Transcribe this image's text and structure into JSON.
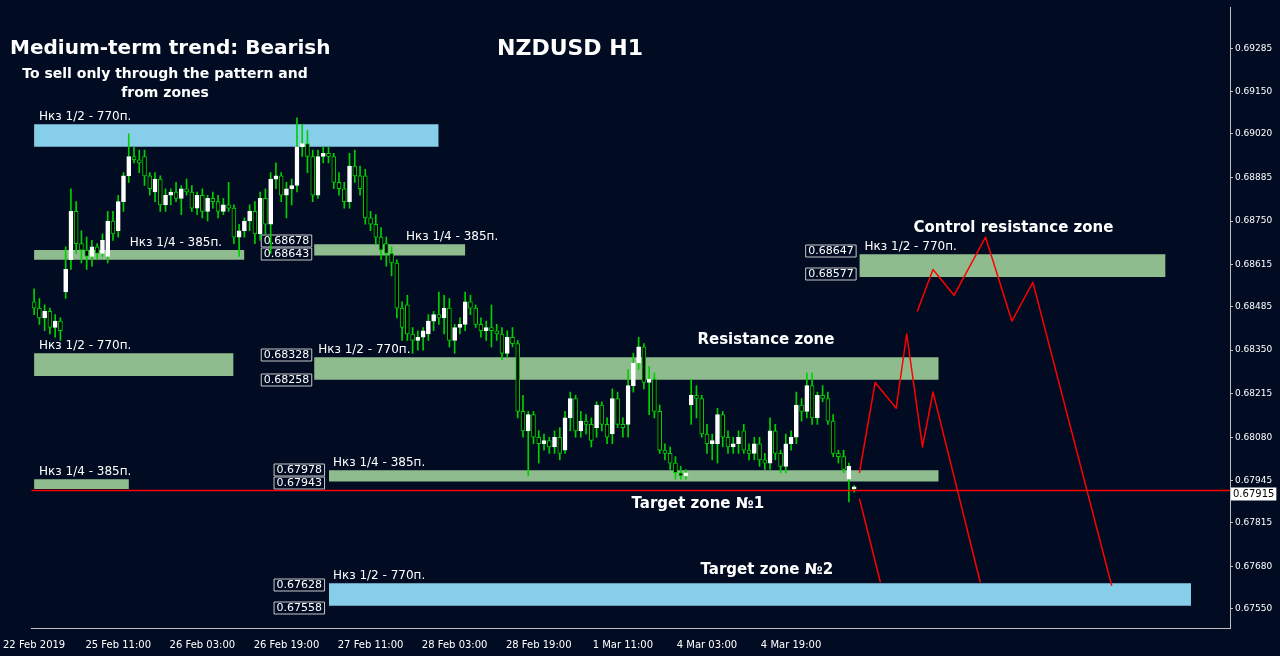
{
  "chart_data": {
    "type": "candlestick",
    "title": "NZDUSD H1",
    "subtitle": "Medium-term trend: Bearish",
    "categories": [
      "22 Feb 2019",
      null,
      null,
      null,
      null,
      null,
      null,
      null,
      null,
      null,
      null,
      null,
      null,
      null,
      null,
      null,
      "25 Feb 11:00",
      null,
      null,
      null,
      null,
      null,
      null,
      null,
      null,
      null,
      null,
      null,
      null,
      null,
      null,
      null,
      "26 Feb 03:00",
      null,
      null,
      null,
      null,
      null,
      null,
      null,
      null,
      null,
      null,
      null,
      null,
      null,
      null,
      null,
      "26 Feb 19:00",
      null,
      null,
      null,
      null,
      null,
      null,
      null,
      null,
      null,
      null,
      null,
      null,
      null,
      null,
      null,
      "27 Feb 11:00",
      null,
      null,
      null,
      null,
      null,
      null,
      null,
      null,
      null,
      null,
      null,
      null,
      null,
      null,
      null,
      "28 Feb 03:00",
      null,
      null,
      null,
      null,
      null,
      null,
      null,
      null,
      null,
      null,
      null,
      null,
      null,
      null,
      null,
      "28 Feb 19:00",
      null,
      null,
      null,
      null,
      null,
      null,
      null,
      null,
      null,
      null,
      null,
      null,
      null,
      null,
      null,
      "1 Mar 11:00",
      null,
      null,
      null,
      null,
      null,
      null,
      null,
      null,
      null,
      null,
      null,
      null,
      null,
      null,
      null,
      "4 Mar 03:00",
      null,
      null,
      null,
      null,
      null,
      null,
      null,
      null,
      null,
      null,
      null,
      null,
      null,
      null,
      null,
      "4 Mar 19:00",
      null,
      null,
      null,
      null,
      null,
      null,
      null,
      null,
      null,
      null,
      null,
      null,
      null,
      null,
      null,
      null,
      null,
      null,
      null,
      null,
      null,
      null,
      null,
      null,
      null,
      null,
      null,
      null,
      null,
      null,
      null,
      null,
      null,
      null,
      null,
      null,
      null,
      null,
      null,
      null,
      null,
      null,
      null,
      null,
      null,
      null,
      null,
      null,
      null,
      null,
      null,
      null,
      null,
      null,
      null,
      null,
      null,
      null,
      null,
      null,
      null,
      null,
      null,
      null,
      null,
      null,
      null,
      null,
      null,
      null,
      null,
      null,
      null,
      null,
      null,
      null,
      null,
      null,
      null,
      null,
      null,
      null,
      null
    ],
    "ohlc": [
      [
        0.685,
        0.6854,
        0.6846,
        0.6848
      ],
      [
        0.6848,
        0.6851,
        0.6843,
        0.6845
      ],
      [
        0.6845,
        0.6849,
        0.6841,
        0.6847
      ],
      [
        0.6847,
        0.6848,
        0.684,
        0.6842
      ],
      [
        0.6842,
        0.6846,
        0.6839,
        0.6844
      ],
      [
        0.6844,
        0.6845,
        0.6838,
        0.6841
      ],
      [
        0.6853,
        0.6867,
        0.6851,
        0.686
      ],
      [
        0.6863,
        0.6885,
        0.686,
        0.6878
      ],
      [
        0.6878,
        0.6881,
        0.6865,
        0.6868
      ],
      [
        0.6868,
        0.6872,
        0.6862,
        0.6866
      ],
      [
        0.6866,
        0.687,
        0.686,
        0.6864
      ],
      [
        0.6864,
        0.6869,
        0.6861,
        0.6867
      ],
      [
        0.6867,
        0.6868,
        0.6863,
        0.6865
      ],
      [
        0.6865,
        0.6871,
        0.6864,
        0.6869
      ],
      [
        0.6864,
        0.6878,
        0.6862,
        0.6875
      ],
      [
        0.6875,
        0.6878,
        0.6869,
        0.6871
      ],
      [
        0.6872,
        0.6883,
        0.687,
        0.6881
      ],
      [
        0.6881,
        0.689,
        0.6878,
        0.6889
      ],
      [
        0.6889,
        0.6902,
        0.6887,
        0.6895
      ],
      [
        0.6895,
        0.6898,
        0.6893,
        0.6894
      ],
      [
        0.6894,
        0.6897,
        0.689,
        0.6893
      ],
      [
        0.6895,
        0.6897,
        0.6886,
        0.6889
      ],
      [
        0.6889,
        0.689,
        0.6883,
        0.6885
      ],
      [
        0.6884,
        0.689,
        0.6881,
        0.6888
      ],
      [
        0.6888,
        0.6889,
        0.6878,
        0.688
      ],
      [
        0.688,
        0.6885,
        0.6878,
        0.6883
      ],
      [
        0.6883,
        0.6885,
        0.688,
        0.6884
      ],
      [
        0.6884,
        0.6887,
        0.6881,
        0.6882
      ],
      [
        0.6882,
        0.6886,
        0.6877,
        0.6885
      ],
      [
        0.6885,
        0.6888,
        0.6883,
        0.6884
      ],
      [
        0.6884,
        0.6886,
        0.6878,
        0.6879
      ],
      [
        0.6879,
        0.6884,
        0.6877,
        0.6883
      ],
      [
        0.6883,
        0.6885,
        0.6876,
        0.6878
      ],
      [
        0.6878,
        0.6883,
        0.6875,
        0.6882
      ],
      [
        0.6882,
        0.6884,
        0.6879,
        0.6881
      ],
      [
        0.6881,
        0.6883,
        0.6876,
        0.6878
      ],
      [
        0.6878,
        0.6882,
        0.6877,
        0.688
      ],
      [
        0.688,
        0.6887,
        0.6878,
        0.6879
      ],
      [
        0.6879,
        0.688,
        0.6868,
        0.687
      ],
      [
        0.687,
        0.6874,
        0.6864,
        0.6872
      ],
      [
        0.6872,
        0.6876,
        0.687,
        0.6875
      ],
      [
        0.6875,
        0.688,
        0.6872,
        0.6878
      ],
      [
        0.6878,
        0.6881,
        0.6868,
        0.6871
      ],
      [
        0.6871,
        0.6884,
        0.6869,
        0.6882
      ],
      [
        0.6882,
        0.6885,
        0.6871,
        0.6874
      ],
      [
        0.6874,
        0.689,
        0.6865,
        0.6888
      ],
      [
        0.6888,
        0.6893,
        0.6885,
        0.6889
      ],
      [
        0.6889,
        0.689,
        0.6881,
        0.6883
      ],
      [
        0.6883,
        0.6887,
        0.6876,
        0.6885
      ],
      [
        0.6885,
        0.6888,
        0.688,
        0.6886
      ],
      [
        0.6886,
        0.6907,
        0.6884,
        0.6898
      ],
      [
        0.6898,
        0.6905,
        0.6895,
        0.6899
      ],
      [
        0.6899,
        0.6903,
        0.689,
        0.6895
      ],
      [
        0.6895,
        0.6897,
        0.6881,
        0.6883
      ],
      [
        0.6883,
        0.6897,
        0.6882,
        0.6895
      ],
      [
        0.6895,
        0.6898,
        0.6893,
        0.6896
      ],
      [
        0.6896,
        0.6898,
        0.6893,
        0.6895
      ],
      [
        0.6895,
        0.6896,
        0.6885,
        0.6887
      ],
      [
        0.6887,
        0.689,
        0.6883,
        0.6885
      ],
      [
        0.6885,
        0.6887,
        0.6879,
        0.6881
      ],
      [
        0.6881,
        0.6896,
        0.6879,
        0.6892
      ],
      [
        0.6892,
        0.6897,
        0.6887,
        0.6889
      ],
      [
        0.6889,
        0.6892,
        0.6883,
        0.6885
      ],
      [
        0.6889,
        0.6891,
        0.6874,
        0.6876
      ],
      [
        0.6876,
        0.6878,
        0.6872,
        0.6874
      ],
      [
        0.6874,
        0.6877,
        0.6868,
        0.687
      ],
      [
        0.687,
        0.6873,
        0.6863,
        0.6866
      ],
      [
        0.6868,
        0.687,
        0.6861,
        0.6865
      ],
      [
        0.6865,
        0.6867,
        0.6858,
        0.6862
      ],
      [
        0.6862,
        0.6863,
        0.6845,
        0.6848
      ],
      [
        0.6848,
        0.685,
        0.6838,
        0.6842
      ],
      [
        0.6849,
        0.6852,
        0.6838,
        0.684
      ],
      [
        0.684,
        0.6842,
        0.6834,
        0.6838
      ],
      [
        0.6838,
        0.6841,
        0.6835,
        0.6839
      ],
      [
        0.6839,
        0.6842,
        0.6835,
        0.6841
      ],
      [
        0.684,
        0.6846,
        0.6838,
        0.6844
      ],
      [
        0.6844,
        0.6847,
        0.6841,
        0.6846
      ],
      [
        0.6846,
        0.6853,
        0.6843,
        0.6845
      ],
      [
        0.6845,
        0.6852,
        0.684,
        0.6848
      ],
      [
        0.6848,
        0.6851,
        0.6836,
        0.6838
      ],
      [
        0.6838,
        0.6843,
        0.6834,
        0.6842
      ],
      [
        0.6842,
        0.6845,
        0.684,
        0.6843
      ],
      [
        0.6843,
        0.6853,
        0.6841,
        0.685
      ],
      [
        0.685,
        0.6852,
        0.6846,
        0.6848
      ],
      [
        0.6848,
        0.6849,
        0.6842,
        0.6843
      ],
      [
        0.6843,
        0.6845,
        0.6839,
        0.6841
      ],
      [
        0.6841,
        0.6844,
        0.6838,
        0.6842
      ],
      [
        0.6842,
        0.6849,
        0.6836,
        0.6841
      ],
      [
        0.6841,
        0.6843,
        0.6838,
        0.684
      ],
      [
        0.684,
        0.6842,
        0.6832,
        0.6834
      ],
      [
        0.6834,
        0.6841,
        0.6833,
        0.6839
      ],
      [
        0.6839,
        0.6842,
        0.6836,
        0.6837
      ],
      [
        0.6837,
        0.6838,
        0.6814,
        0.6816
      ],
      [
        0.6816,
        0.6821,
        0.6808,
        0.681
      ],
      [
        0.681,
        0.6816,
        0.6796,
        0.6815
      ],
      [
        0.6815,
        0.6816,
        0.6806,
        0.6808
      ],
      [
        0.6808,
        0.681,
        0.68,
        0.6806
      ],
      [
        0.6806,
        0.6809,
        0.6804,
        0.6807
      ],
      [
        0.6807,
        0.6808,
        0.6803,
        0.6805
      ],
      [
        0.6805,
        0.681,
        0.6803,
        0.6808
      ],
      [
        0.6808,
        0.6811,
        0.6801,
        0.6803
      ],
      [
        0.6804,
        0.6816,
        0.6803,
        0.6814
      ],
      [
        0.6814,
        0.6822,
        0.681,
        0.682
      ],
      [
        0.682,
        0.6821,
        0.6808,
        0.681
      ],
      [
        0.681,
        0.6816,
        0.6808,
        0.6813
      ],
      [
        0.6813,
        0.6815,
        0.6809,
        0.6812
      ],
      [
        0.6812,
        0.6814,
        0.6805,
        0.6807
      ],
      [
        0.6811,
        0.6819,
        0.6808,
        0.6818
      ],
      [
        0.6818,
        0.6819,
        0.681,
        0.6812
      ],
      [
        0.6812,
        0.6814,
        0.6806,
        0.6808
      ],
      [
        0.6809,
        0.6823,
        0.6806,
        0.682
      ],
      [
        0.682,
        0.6822,
        0.6811,
        0.6812
      ],
      [
        0.6812,
        0.6814,
        0.6808,
        0.6811
      ],
      [
        0.6812,
        0.6829,
        0.6808,
        0.6824
      ],
      [
        0.6824,
        0.6834,
        0.6822,
        0.6831
      ],
      [
        0.6831,
        0.6839,
        0.6829,
        0.6836
      ],
      [
        0.6836,
        0.6837,
        0.6823,
        0.6825
      ],
      [
        0.6825,
        0.683,
        0.6815,
        0.6826
      ],
      [
        0.6826,
        0.6828,
        0.6814,
        0.6816
      ],
      [
        0.6816,
        0.6818,
        0.6803,
        0.6804
      ],
      [
        0.6804,
        0.6806,
        0.6801,
        0.6803
      ],
      [
        0.6803,
        0.6805,
        0.6798,
        0.68
      ],
      [
        0.68,
        0.6802,
        0.6795,
        0.6797
      ],
      [
        0.6797,
        0.6799,
        0.6795,
        0.6796
      ],
      [
        0.6796,
        0.6798,
        0.6795,
        0.6797
      ],
      [
        0.6818,
        0.6826,
        0.6812,
        0.6821
      ],
      [
        0.6821,
        0.6824,
        0.6814,
        0.682
      ],
      [
        0.682,
        0.6821,
        0.6808,
        0.6809
      ],
      [
        0.6809,
        0.6812,
        0.6803,
        0.6806
      ],
      [
        0.6806,
        0.6809,
        0.6801,
        0.6807
      ],
      [
        0.6806,
        0.6817,
        0.68,
        0.6815
      ],
      [
        0.6815,
        0.6816,
        0.6805,
        0.6808
      ],
      [
        0.6808,
        0.681,
        0.6803,
        0.6805
      ],
      [
        0.6805,
        0.6808,
        0.6803,
        0.6806
      ],
      [
        0.6806,
        0.681,
        0.6803,
        0.6808
      ],
      [
        0.681,
        0.6812,
        0.6803,
        0.6804
      ],
      [
        0.6804,
        0.6806,
        0.6801,
        0.6803
      ],
      [
        0.6803,
        0.6808,
        0.6801,
        0.6806
      ],
      [
        0.6806,
        0.6808,
        0.6799,
        0.6801
      ],
      [
        0.6801,
        0.6803,
        0.6798,
        0.68
      ],
      [
        0.68,
        0.6814,
        0.6798,
        0.681
      ],
      [
        0.681,
        0.6812,
        0.6801,
        0.6803
      ],
      [
        0.6803,
        0.6804,
        0.6797,
        0.6799
      ],
      [
        0.6799,
        0.6809,
        0.6797,
        0.6806
      ],
      [
        0.6806,
        0.681,
        0.6804,
        0.6808
      ],
      [
        0.6808,
        0.6822,
        0.6806,
        0.6818
      ],
      [
        0.6818,
        0.682,
        0.6813,
        0.6816
      ],
      [
        0.6816,
        0.6828,
        0.6814,
        0.6824
      ],
      [
        0.6824,
        0.6828,
        0.6812,
        0.6814
      ],
      [
        0.6814,
        0.6822,
        0.6812,
        0.6821
      ],
      [
        0.6821,
        0.6824,
        0.6819,
        0.682
      ],
      [
        0.682,
        0.6822,
        0.6812,
        0.6813
      ],
      [
        0.6813,
        0.6815,
        0.6802,
        0.6803
      ],
      [
        0.6803,
        0.6804,
        0.68,
        0.6802
      ],
      [
        0.6802,
        0.6804,
        0.6797,
        0.6798
      ],
      [
        0.6795,
        0.68,
        0.6788,
        0.6799
      ],
      [
        0.6792,
        0.6793,
        0.6791,
        0.6792
      ],
      null,
      null,
      null,
      null,
      null,
      null,
      null,
      null,
      null,
      null,
      null,
      null,
      null,
      null,
      null,
      null,
      null,
      null,
      null,
      null,
      null,
      null,
      null,
      null,
      null,
      null,
      null,
      null,
      null,
      null,
      null,
      null,
      null,
      null,
      null,
      null,
      null,
      null,
      null,
      null,
      null,
      null,
      null,
      null,
      null,
      null,
      null,
      null,
      null,
      null,
      null,
      null,
      null,
      null,
      null,
      null,
      null,
      null,
      null,
      null,
      null,
      null,
      null,
      null,
      null,
      null,
      null,
      null,
      null,
      null,
      null
    ],
    "series": [
      {
        "type": "line",
        "color": "#ff0000",
        "values": [
          null,
          null,
          null,
          null,
          null,
          null,
          null,
          null,
          null,
          null,
          null,
          null,
          null,
          null,
          null,
          null,
          null,
          null,
          null,
          null,
          null,
          null,
          null,
          null,
          null,
          null,
          null,
          null,
          null,
          null,
          null,
          null,
          null,
          null,
          null,
          null,
          null,
          null,
          null,
          null,
          null,
          null,
          null,
          null,
          null,
          null,
          null,
          null,
          null,
          null,
          null,
          null,
          null,
          null,
          null,
          null,
          null,
          null,
          null,
          null,
          null,
          null,
          null,
          null,
          null,
          null,
          null,
          null,
          null,
          null,
          null,
          null,
          null,
          null,
          null,
          null,
          null,
          null,
          null,
          null,
          null,
          null,
          null,
          null,
          null,
          null,
          null,
          null,
          null,
          null,
          null,
          null,
          null,
          null,
          null,
          null,
          null,
          null,
          null,
          null,
          null,
          null,
          null,
          null,
          null,
          null,
          null,
          null,
          null,
          null,
          null,
          null,
          null,
          null,
          null,
          null,
          null,
          null,
          null,
          null,
          null,
          null,
          null,
          null,
          null,
          null,
          null,
          null,
          null,
          null,
          null,
          null,
          null,
          null,
          null,
          null,
          null,
          null,
          null,
          null,
          null,
          null,
          null,
          null,
          null,
          null,
          null,
          null,
          null,
          null,
          null,
          null,
          null,
          null,
          null,
          null,
          null,
          0.6789,
          null,
          null,
          null,
          0.6763,
          null,
          null,
          null,
          null,
          null,
          null,
          null,
          null,
          null,
          null,
          null,
          null,
          null,
          null,
          null,
          null,
          null,
          null,
          null,
          null,
          null,
          null,
          null,
          null,
          null,
          null,
          null,
          null,
          null,
          null,
          null,
          null,
          null,
          null,
          null,
          null,
          null,
          null,
          null,
          null,
          null,
          null,
          null,
          null,
          null,
          null,
          null,
          null,
          null,
          null,
          null,
          null,
          null,
          null,
          null,
          null,
          null,
          null,
          null,
          null,
          null,
          null,
          null,
          null,
          null,
          null
        ]
      },
      {
        "type": "line",
        "color": "#ff0000",
        "values": [
          null,
          null,
          null,
          null,
          null,
          null,
          null,
          null,
          null,
          null,
          null,
          null,
          null,
          null,
          null,
          null,
          null,
          null,
          null,
          null,
          null,
          null,
          null,
          null,
          null,
          null,
          null,
          null,
          null,
          null,
          null,
          null,
          null,
          null,
          null,
          null,
          null,
          null,
          null,
          null,
          null,
          null,
          null,
          null,
          null,
          null,
          null,
          null,
          null,
          null,
          null,
          null,
          null,
          null,
          null,
          null,
          null,
          null,
          null,
          null,
          null,
          null,
          null,
          null,
          null,
          null,
          null,
          null,
          null,
          null,
          null,
          null,
          null,
          null,
          null,
          null,
          null,
          null,
          null,
          null,
          null,
          null,
          null,
          null,
          null,
          null,
          null,
          null,
          null,
          null,
          null,
          null,
          null,
          null,
          null,
          null,
          null,
          null,
          null,
          null,
          null,
          null,
          null,
          null,
          null,
          null,
          null,
          null,
          null,
          null,
          null,
          null,
          null,
          null,
          null,
          null,
          null,
          null,
          null,
          null,
          null,
          null,
          null,
          null,
          null,
          null,
          null,
          null,
          null,
          null,
          null,
          null,
          null,
          null,
          null,
          null,
          null,
          null,
          null,
          null,
          null,
          null,
          null,
          null,
          null,
          null,
          null,
          null,
          null,
          null,
          null,
          null,
          null,
          null,
          null,
          null,
          null,
          0.6797,
          null,
          null,
          0.6825,
          null,
          null,
          null,
          0.6817,
          null,
          0.684,
          null,
          null,
          0.6805,
          null,
          0.6822,
          null,
          null,
          null,
          null,
          null,
          null,
          null,
          null,
          0.6763,
          null,
          null,
          null,
          null,
          null,
          null,
          null,
          null,
          null,
          null,
          null,
          null,
          null,
          null,
          null,
          null,
          null,
          null,
          null,
          null,
          null,
          null,
          null,
          null,
          null,
          null,
          null,
          null,
          null,
          null,
          null,
          null,
          null,
          null,
          null,
          null,
          null,
          null,
          null,
          null,
          null,
          null,
          null,
          null,
          null,
          null,
          null
        ]
      },
      {
        "type": "line",
        "color": "#ff0000",
        "values": [
          null,
          null,
          null,
          null,
          null,
          null,
          null,
          null,
          null,
          null,
          null,
          null,
          null,
          null,
          null,
          null,
          null,
          null,
          null,
          null,
          null,
          null,
          null,
          null,
          null,
          null,
          null,
          null,
          null,
          null,
          null,
          null,
          null,
          null,
          null,
          null,
          null,
          null,
          null,
          null,
          null,
          null,
          null,
          null,
          null,
          null,
          null,
          null,
          null,
          null,
          null,
          null,
          null,
          null,
          null,
          null,
          null,
          null,
          null,
          null,
          null,
          null,
          null,
          null,
          null,
          null,
          null,
          null,
          null,
          null,
          null,
          null,
          null,
          null,
          null,
          null,
          null,
          null,
          null,
          null,
          null,
          null,
          null,
          null,
          null,
          null,
          null,
          null,
          null,
          null,
          null,
          null,
          null,
          null,
          null,
          null,
          null,
          null,
          null,
          null,
          null,
          null,
          null,
          null,
          null,
          null,
          null,
          null,
          null,
          null,
          null,
          null,
          null,
          null,
          null,
          null,
          null,
          null,
          null,
          null,
          null,
          null,
          null,
          null,
          null,
          null,
          null,
          null,
          null,
          null,
          null,
          null,
          null,
          null,
          null,
          null,
          null,
          null,
          null,
          null,
          null,
          null,
          null,
          null,
          null,
          null,
          null,
          null,
          null,
          null,
          null,
          null,
          null,
          null,
          null,
          null,
          null,
          null,
          null,
          null,
          null,
          null,
          null,
          null,
          null,
          null,
          null,
          null,
          0.6847,
          null,
          null,
          0.686,
          null,
          null,
          null,
          0.6852,
          null,
          null,
          null,
          null,
          null,
          0.687,
          null,
          null,
          null,
          null,
          0.6844,
          null,
          null,
          null,
          0.6856,
          null,
          null,
          null,
          null,
          null,
          null,
          null,
          null,
          null,
          null,
          null,
          null,
          null,
          null,
          0.6762,
          null,
          null,
          null,
          null,
          null,
          null,
          null,
          null,
          null,
          null,
          null,
          null,
          null,
          null,
          null,
          null,
          null,
          null,
          null,
          null,
          null,
          null
        ]
      }
    ],
    "ylim": [
      0.67489,
      0.69412
    ],
    "yticks": [
      0.69285,
      {
        "value": 0.6915,
        "label": "0.69150"
      },
      {
        "value": 0.6902,
        "label": "0.69020"
      },
      0.68885,
      {
        "value": 0.6875,
        "label": "0.68750"
      },
      0.68615,
      0.68485,
      {
        "value": 0.6835,
        "label": "0.68350"
      },
      0.68215,
      {
        "value": 0.6808,
        "label": "0.68080"
      },
      0.67945,
      0.67815,
      {
        "value": 0.6768,
        "label": "0.67680"
      },
      {
        "value": 0.6755,
        "label": "0.67550"
      }
    ],
    "bands": [
      {
        "axis": "y",
        "from": 0.6898,
        "to": 0.6905,
        "label": "Нкз 1/2 - 770п.",
        "color": "#87ceeb"
      },
      {
        "axis": "y",
        "from": 0.6863,
        "to": 0.6866,
        "label": "Нкз 1/4 - 385п.",
        "color": "#8fbc8f"
      },
      {
        "axis": "y",
        "from": 0.68643,
        "to": 0.68678,
        "label": "Нкз 1/4 - 385п.",
        "color": "#8fbc8f"
      },
      {
        "axis": "y",
        "from": 0.6827,
        "to": 0.6834,
        "label": "Нкз 1/2 - 770п.",
        "color": "#8fbc8f"
      },
      {
        "axis": "y",
        "from": 0.68258,
        "to": 0.68328,
        "label": "Нкз 1/2 - 770п.",
        "color": "#8fbc8f"
      },
      {
        "axis": "y",
        "from": 0.6792,
        "to": 0.6795,
        "label": "Нкз 1/4 - 385п.",
        "color": "#8fbc8f"
      },
      {
        "axis": "y",
        "from": 0.67943,
        "to": 0.67978,
        "label": "Нкз 1/4 - 385п.",
        "color": "#8fbc8f"
      },
      {
        "axis": "y",
        "from": 0.67558,
        "to": 0.67628,
        "label": "Нкз 1/2 - 770п.",
        "color": "#87ceeb"
      },
      {
        "axis": "y",
        "from": 0.68577,
        "to": 0.68647,
        "label": "Нкз 1/2 - 770п.",
        "color": "#8fbc8f"
      }
    ],
    "ref_lines": [
      {
        "axis": "y",
        "value": 0.67915,
        "label": "0.67915",
        "color": "#ff0000"
      }
    ],
    "annotations": [
      "To sell only through the pattern and from zones",
      {
        "text": "Resistance zone",
        "y": 0.68328
      },
      {
        "text": "Target zone №1",
        "y": 0.67943
      },
      {
        "text": "Target zone №2",
        "y": 0.67628
      },
      {
        "text": "Control resistance zone",
        "y": 0.68647
      },
      "0.68678",
      "0.68643",
      "0.68328",
      "0.68258",
      "0.67978",
      "0.67943",
      "0.67628",
      "0.67558",
      "0.68647",
      "0.68577"
    ]
  }
}
